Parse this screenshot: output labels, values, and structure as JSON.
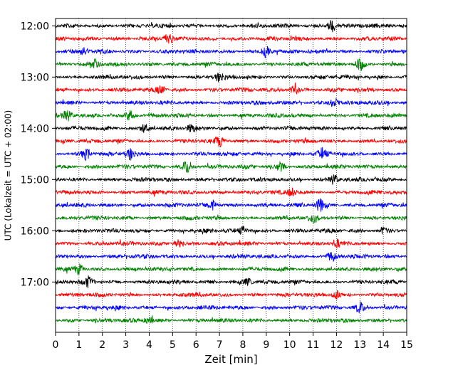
{
  "chart_data": {
    "type": "line",
    "subtype": "helicorder",
    "xlabel": "Zeit  [min]",
    "ylabel": "UTC (Lokalzeit = UTC + 02:00)",
    "xlim": [
      0,
      15
    ],
    "x_ticks": [
      0,
      1,
      2,
      3,
      4,
      5,
      6,
      7,
      8,
      9,
      10,
      11,
      12,
      13,
      14,
      15
    ],
    "y_tick_labels": [
      "12:00",
      "13:00",
      "14:00",
      "15:00",
      "16:00",
      "17:00"
    ],
    "y_tick_rows": [
      0,
      4,
      8,
      12,
      16,
      20
    ],
    "rows": 24,
    "row_interval_minutes": 15,
    "start_time": "12:00",
    "trace_color_cycle": [
      "#000000",
      "#ff0000",
      "#0000ff",
      "#008000"
    ],
    "vertical_grid": "dotted at every minute",
    "baseline_offset_fraction": 0.03,
    "bursts": [
      {
        "row": 0,
        "minute": 11.8,
        "amplitude": 0.45
      },
      {
        "row": 1,
        "minute": 4.8,
        "amplitude": 0.35
      },
      {
        "row": 2,
        "minute": 9.0,
        "amplitude": 0.4
      },
      {
        "row": 2,
        "minute": 1.2,
        "amplitude": 0.3
      },
      {
        "row": 3,
        "minute": 13.0,
        "amplitude": 0.45
      },
      {
        "row": 3,
        "minute": 1.7,
        "amplitude": 0.3
      },
      {
        "row": 4,
        "minute": 7.0,
        "amplitude": 0.3
      },
      {
        "row": 5,
        "minute": 4.5,
        "amplitude": 0.3
      },
      {
        "row": 5,
        "minute": 10.2,
        "amplitude": 0.3
      },
      {
        "row": 6,
        "minute": 11.9,
        "amplitude": 0.35
      },
      {
        "row": 7,
        "minute": 3.2,
        "amplitude": 0.4
      },
      {
        "row": 7,
        "minute": 0.5,
        "amplitude": 0.3
      },
      {
        "row": 8,
        "minute": 3.8,
        "amplitude": 0.3
      },
      {
        "row": 8,
        "minute": 5.8,
        "amplitude": 0.25
      },
      {
        "row": 9,
        "minute": 7.0,
        "amplitude": 0.35
      },
      {
        "row": 10,
        "minute": 1.3,
        "amplitude": 0.4
      },
      {
        "row": 10,
        "minute": 3.2,
        "amplitude": 0.4
      },
      {
        "row": 10,
        "minute": 11.4,
        "amplitude": 0.35
      },
      {
        "row": 11,
        "minute": 5.6,
        "amplitude": 0.45
      },
      {
        "row": 11,
        "minute": 9.6,
        "amplitude": 0.3
      },
      {
        "row": 12,
        "minute": 11.9,
        "amplitude": 0.3
      },
      {
        "row": 13,
        "minute": 10.1,
        "amplitude": 0.3
      },
      {
        "row": 14,
        "minute": 11.3,
        "amplitude": 0.45
      },
      {
        "row": 14,
        "minute": 6.7,
        "amplitude": 0.35
      },
      {
        "row": 15,
        "minute": 11.0,
        "amplitude": 0.3
      },
      {
        "row": 16,
        "minute": 8.0,
        "amplitude": 0.25
      },
      {
        "row": 16,
        "minute": 14.0,
        "amplitude": 0.25
      },
      {
        "row": 17,
        "minute": 5.2,
        "amplitude": 0.3
      },
      {
        "row": 17,
        "minute": 12.0,
        "amplitude": 0.25
      },
      {
        "row": 18,
        "minute": 11.8,
        "amplitude": 0.3
      },
      {
        "row": 19,
        "minute": 1.0,
        "amplitude": 0.35
      },
      {
        "row": 20,
        "minute": 1.4,
        "amplitude": 0.35
      },
      {
        "row": 20,
        "minute": 8.2,
        "amplitude": 0.25
      },
      {
        "row": 21,
        "minute": 12.0,
        "amplitude": 0.25
      },
      {
        "row": 22,
        "minute": 13.0,
        "amplitude": 0.4
      },
      {
        "row": 23,
        "minute": 4.0,
        "amplitude": 0.25
      }
    ]
  }
}
